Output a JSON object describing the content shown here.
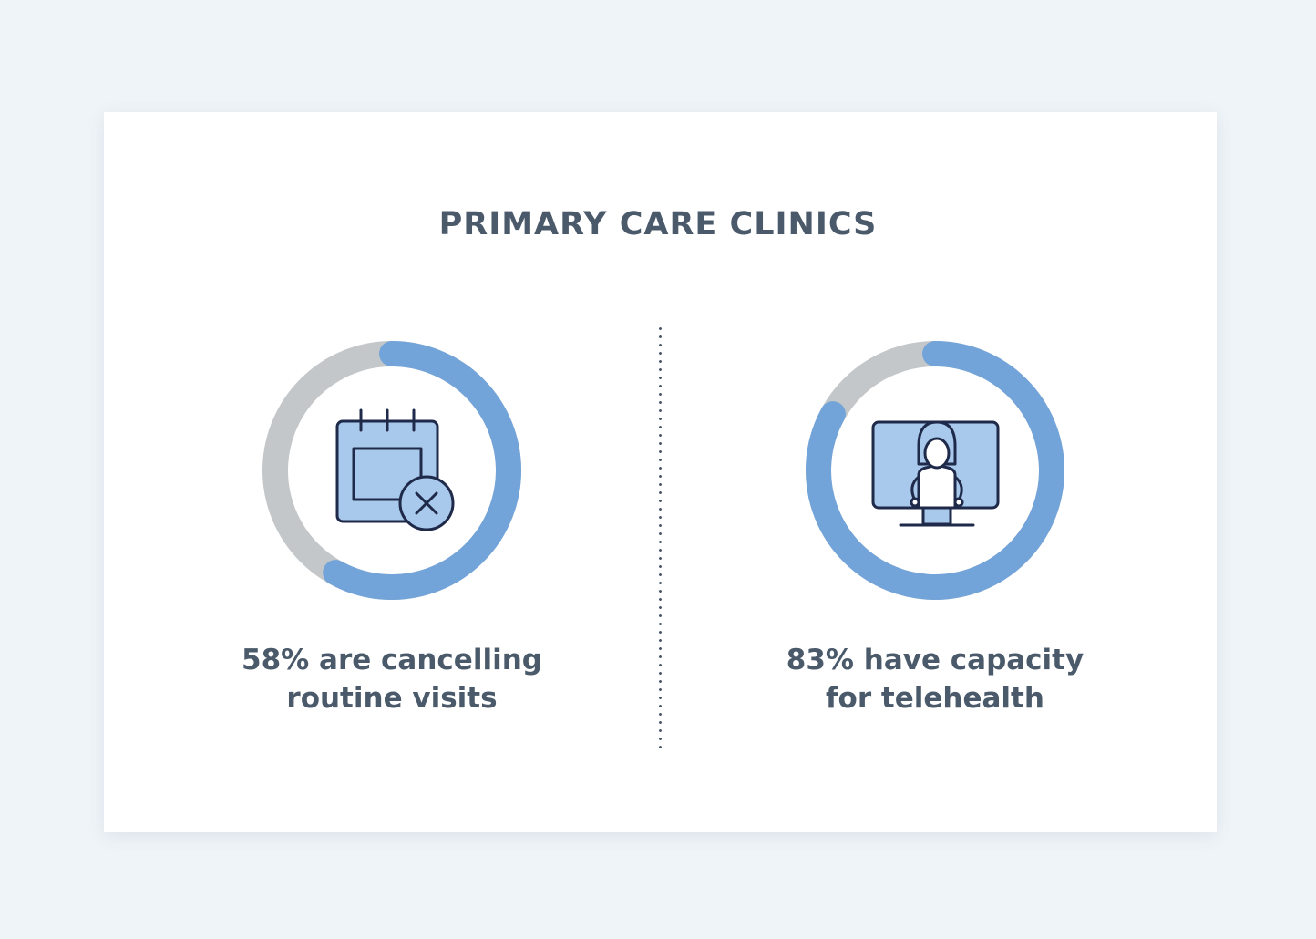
{
  "title": "PRIMARY CARE CLINICS",
  "colors": {
    "accent": "#73a4d9",
    "track": "#c4c7c9",
    "text": "#4a5a6a",
    "icon_fill": "#a9c9ec",
    "icon_stroke": "#1f2a4a",
    "background": "#eff4f8"
  },
  "chart_data": [
    {
      "type": "pie",
      "categories": [
        "58%",
        "42%"
      ],
      "values": [
        58,
        42
      ],
      "caption_lines": [
        "58% are cancelling",
        "routine visits"
      ],
      "icon": "calendar-cancel-icon"
    },
    {
      "type": "pie",
      "categories": [
        "83%",
        "17%"
      ],
      "values": [
        83,
        17
      ],
      "caption_lines": [
        "83% have capacity",
        "for telehealth"
      ],
      "icon": "telehealth-monitor-icon"
    }
  ]
}
